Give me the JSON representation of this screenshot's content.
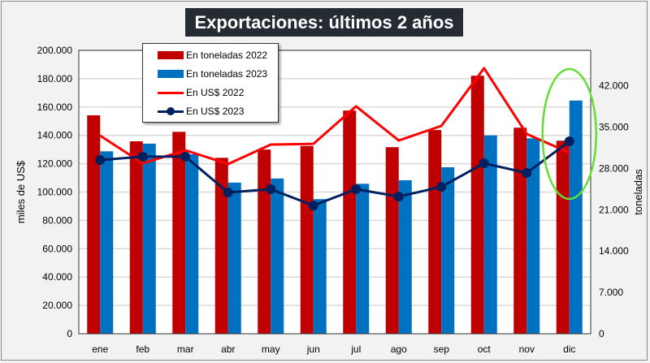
{
  "chart_data": {
    "type": "bar",
    "title": "Exportaciones: últimos 2 años",
    "categories": [
      "ene",
      "feb",
      "mar",
      "abr",
      "may",
      "jun",
      "jul",
      "ago",
      "sep",
      "oct",
      "nov",
      "dic"
    ],
    "ylabel": "miles de US$",
    "y2label": "toneladas",
    "ylim": [
      0,
      200000
    ],
    "y2lim": [
      0,
      48000
    ],
    "yticks": [
      "0",
      "20.000",
      "40.000",
      "60.000",
      "80.000",
      "100.000",
      "120.000",
      "140.000",
      "160.000",
      "180.000",
      "200.000"
    ],
    "y2ticks": [
      "0",
      "7.000",
      "14.000",
      "21.000",
      "28.000",
      "35.000",
      "42.000"
    ],
    "grid": true,
    "legend_position": "top-left",
    "series": [
      {
        "name": "En toneladas 2022",
        "type": "bar",
        "axis": "right",
        "color": "#c00000",
        "values": [
          37000,
          32600,
          34200,
          29800,
          31200,
          31800,
          37800,
          31600,
          34500,
          43700,
          34900,
          32700
        ]
      },
      {
        "name": "En toneladas 2023",
        "type": "bar",
        "axis": "right",
        "color": "#0070c0",
        "values": [
          30900,
          32200,
          30400,
          25600,
          26300,
          22800,
          25400,
          26000,
          28200,
          33600,
          33100,
          39500
        ]
      },
      {
        "name": "En US$ 2022",
        "type": "line",
        "axis": "left",
        "color": "#ff0000",
        "values": [
          139800,
          120300,
          129500,
          119800,
          133500,
          134000,
          160500,
          136400,
          146700,
          187400,
          141000,
          127800
        ]
      },
      {
        "name": "En US$ 2023",
        "type": "line",
        "axis": "left",
        "color": "#002060",
        "marker": "circle",
        "values": [
          122600,
          125000,
          125000,
          99700,
          102000,
          90500,
          102000,
          96800,
          103700,
          120300,
          113500,
          135800
        ]
      }
    ],
    "annotations": [
      {
        "type": "ellipse",
        "color": "#66dd33",
        "category": "dic"
      }
    ]
  }
}
